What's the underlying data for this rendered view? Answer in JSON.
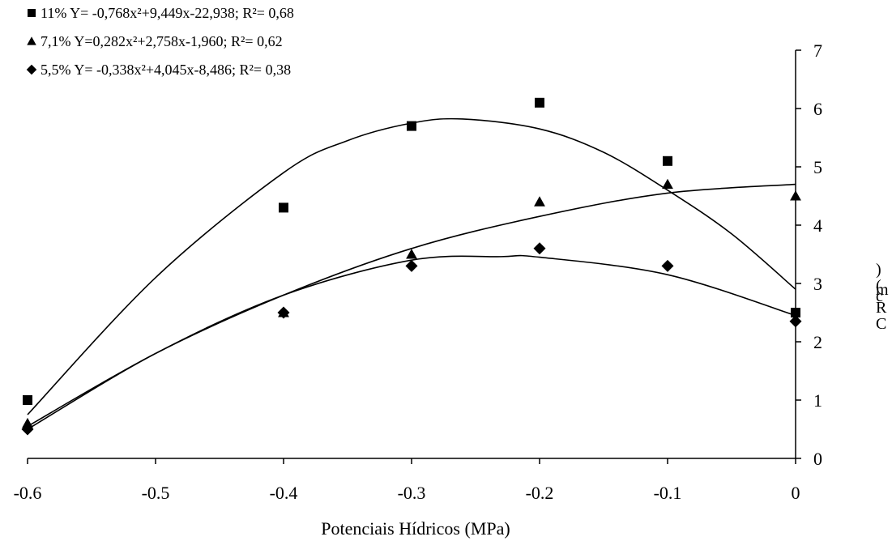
{
  "chart_data": {
    "type": "scatter",
    "title": "",
    "xlabel": "Potenciais Hídricos (MPa)",
    "ylabel_fragments": [
      ")",
      "m",
      "c",
      "(",
      "R",
      "C"
    ],
    "xlim": [
      -0.6,
      0
    ],
    "ylim": [
      0,
      7
    ],
    "x_ticks": [
      -0.6,
      -0.5,
      -0.4,
      -0.3,
      -0.2,
      -0.1,
      0
    ],
    "x_tick_labels": [
      "-0.6",
      "-0.5",
      "-0.4",
      "-0.3",
      "-0.2",
      "-0.1",
      "0"
    ],
    "y_ticks": [
      0,
      1,
      2,
      3,
      4,
      5,
      6,
      7
    ],
    "y_tick_labels": [
      "0",
      "1",
      "2",
      "3",
      "4",
      "5",
      "6",
      "7"
    ],
    "y_axis_position": "right",
    "grid": false,
    "legend_position": "top-left",
    "series": [
      {
        "name": "11%",
        "marker": "square",
        "equation_label": "11% Y= -0,768x²+9,449x-22,938; R²= 0,68",
        "x": [
          -0.6,
          -0.4,
          -0.3,
          -0.2,
          -0.1,
          0
        ],
        "y": [
          1.0,
          4.3,
          5.7,
          6.1,
          5.1,
          2.5
        ]
      },
      {
        "name": "7,1%",
        "marker": "triangle",
        "equation_label": "7,1% Y=0,282x²+2,758x-1,960; R²= 0,62",
        "x": [
          -0.6,
          -0.4,
          -0.3,
          -0.2,
          -0.1,
          0
        ],
        "y": [
          0.6,
          2.5,
          3.5,
          4.4,
          4.7,
          4.5
        ]
      },
      {
        "name": "5,5%",
        "marker": "diamond",
        "equation_label": "5,5% Y= -0,338x²+4,045x-8,486; R²= 0,38",
        "x": [
          -0.6,
          -0.4,
          -0.3,
          -0.2,
          -0.1,
          0
        ],
        "y": [
          0.5,
          2.5,
          3.3,
          3.6,
          3.3,
          2.35
        ]
      }
    ],
    "trend_curves": [
      {
        "series": "11%",
        "x": [
          -0.6,
          -0.5,
          -0.4,
          -0.35,
          -0.3,
          -0.26,
          -0.2,
          -0.15,
          -0.1,
          -0.05,
          0
        ],
        "y": [
          0.75,
          3.1,
          4.9,
          5.45,
          5.75,
          5.82,
          5.65,
          5.25,
          4.6,
          3.85,
          2.9
        ]
      },
      {
        "series": "7,1%",
        "x": [
          -0.6,
          -0.5,
          -0.4,
          -0.3,
          -0.2,
          -0.1,
          0
        ],
        "y": [
          0.55,
          1.8,
          2.8,
          3.6,
          4.15,
          4.55,
          4.7
        ]
      },
      {
        "series": "5,5%",
        "x": [
          -0.6,
          -0.5,
          -0.4,
          -0.3,
          -0.23,
          -0.2,
          -0.1,
          0
        ],
        "y": [
          0.5,
          1.8,
          2.8,
          3.4,
          3.46,
          3.45,
          3.15,
          2.45
        ]
      }
    ]
  }
}
